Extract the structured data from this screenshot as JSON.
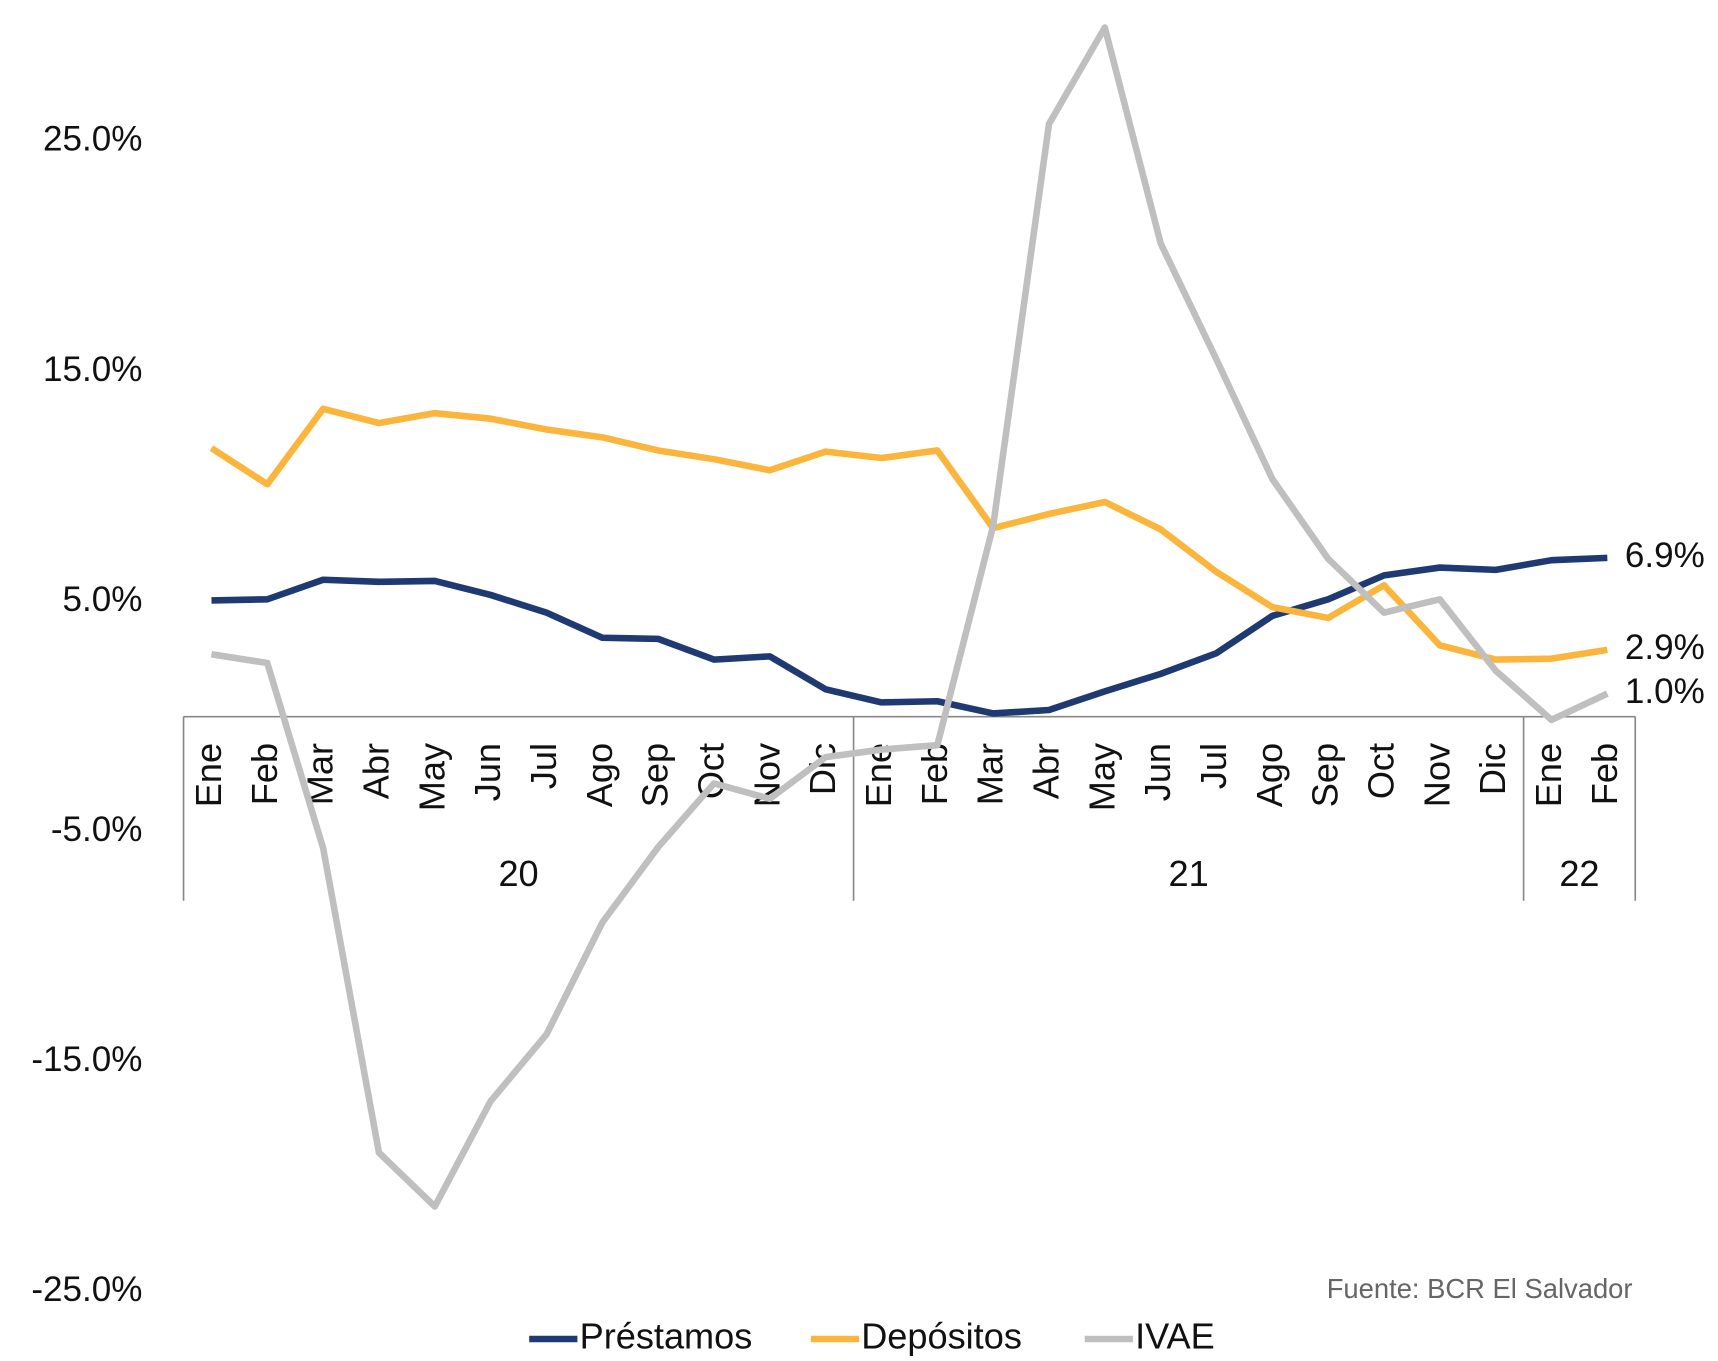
{
  "chart_data": {
    "type": "line",
    "categories": [
      "Ene",
      "Feb",
      "Mar",
      "Abr",
      "May",
      "Jun",
      "Jul",
      "Ago",
      "Sep",
      "Oct",
      "Nov",
      "Dic",
      "Ene",
      "Feb",
      "Mar",
      "Abr",
      "May",
      "Jun",
      "Jul",
      "Ago",
      "Sep",
      "Oct",
      "Nov",
      "Dic",
      "Ene",
      "Feb"
    ],
    "x_groups": [
      "20",
      "21",
      "22"
    ],
    "series": [
      {
        "name": "Préstamos",
        "color": "#1f3a73",
        "values": [
          5.05,
          5.1,
          5.95,
          5.86,
          5.9,
          5.29,
          4.52,
          3.43,
          3.38,
          2.48,
          2.62,
          1.19,
          0.62,
          0.67,
          0.14,
          0.29,
          1.1,
          1.86,
          2.76,
          4.38,
          5.1,
          6.14,
          6.48,
          6.38,
          6.8,
          6.9
        ],
        "value_labels": [
          null,
          null,
          null,
          null,
          null,
          null,
          null,
          null,
          null,
          null,
          null,
          null,
          null,
          null,
          null,
          null,
          null,
          null,
          null,
          null,
          null,
          null,
          null,
          null,
          null,
          "6.9%"
        ]
      },
      {
        "name": "Depósitos",
        "color": "#fbb53c",
        "values": [
          11.67,
          10.1,
          13.38,
          12.76,
          13.19,
          12.95,
          12.48,
          12.14,
          11.57,
          11.19,
          10.71,
          11.52,
          11.24,
          11.57,
          8.19,
          8.81,
          9.33,
          8.14,
          6.29,
          4.76,
          4.29,
          5.71,
          3.1,
          2.48,
          2.52,
          2.9
        ],
        "value_labels": [
          null,
          null,
          null,
          null,
          null,
          null,
          null,
          null,
          null,
          null,
          null,
          null,
          null,
          null,
          null,
          null,
          null,
          null,
          null,
          null,
          null,
          null,
          null,
          null,
          null,
          "2.9%"
        ]
      },
      {
        "name": "IVAE",
        "color": "#bfbfbf",
        "values": [
          2.71,
          2.33,
          -5.71,
          -18.95,
          -21.29,
          -16.71,
          -13.81,
          -8.95,
          -5.67,
          -2.9,
          -3.57,
          -1.76,
          -1.43,
          -1.24,
          8.29,
          25.76,
          29.95,
          20.57,
          15.52,
          10.33,
          6.86,
          4.52,
          5.1,
          2.0,
          -0.14,
          1.0
        ],
        "value_labels": [
          null,
          null,
          null,
          null,
          null,
          null,
          null,
          null,
          null,
          null,
          null,
          null,
          null,
          null,
          null,
          null,
          null,
          null,
          null,
          null,
          null,
          null,
          null,
          null,
          null,
          "1.0%"
        ]
      }
    ],
    "ylim": [
      -25,
      30
    ],
    "yticks": [
      {
        "value": -25,
        "label": "-25.0%"
      },
      {
        "value": -15,
        "label": "-15.0%"
      },
      {
        "value": -5,
        "label": "-5.0%"
      },
      {
        "value": 5,
        "label": "5.0%"
      },
      {
        "value": 15,
        "label": "15.0%"
      },
      {
        "value": 25,
        "label": "25.0%"
      }
    ],
    "source": "Fuente: BCR El Salvador",
    "legend": "bottom"
  }
}
